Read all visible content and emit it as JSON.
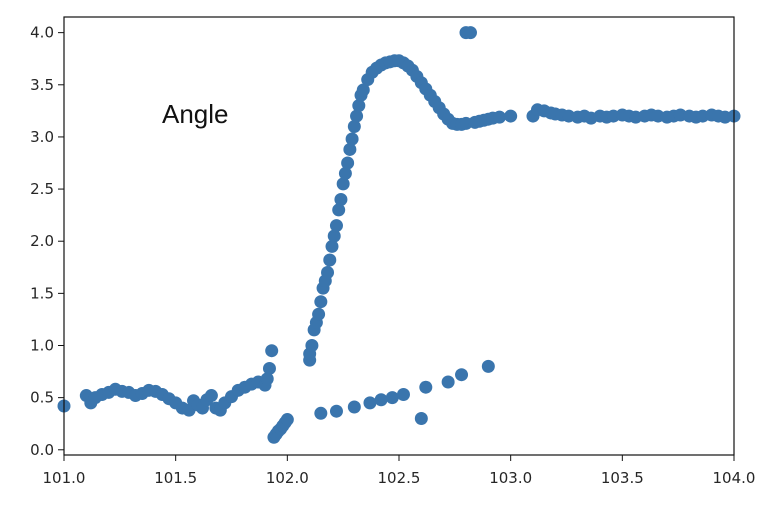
{
  "chart_data": {
    "type": "scatter",
    "title": "",
    "xlabel": "",
    "ylabel": "",
    "annotation": "Angle",
    "xlim": [
      101.0,
      104.0
    ],
    "ylim": [
      -0.05,
      4.15
    ],
    "grid": false,
    "marker_color": "#3a75ad",
    "xticks": [
      101.0,
      101.5,
      102.0,
      102.5,
      103.0,
      103.5,
      104.0
    ],
    "yticks": [
      0.0,
      0.5,
      1.0,
      1.5,
      2.0,
      2.5,
      3.0,
      3.5,
      4.0
    ],
    "xtick_labels": [
      "101.0",
      "101.5",
      "102.0",
      "102.5",
      "103.0",
      "103.5",
      "104.0"
    ],
    "ytick_labels": [
      "0.0",
      "0.5",
      "1.0",
      "1.5",
      "2.0",
      "2.5",
      "3.0",
      "3.5",
      "4.0"
    ],
    "series": [
      {
        "points": [
          [
            101.0,
            0.42
          ],
          [
            101.1,
            0.52
          ],
          [
            101.12,
            0.45
          ],
          [
            101.14,
            0.5
          ],
          [
            101.17,
            0.53
          ],
          [
            101.2,
            0.55
          ],
          [
            101.23,
            0.58
          ],
          [
            101.26,
            0.56
          ],
          [
            101.29,
            0.55
          ],
          [
            101.32,
            0.52
          ],
          [
            101.35,
            0.54
          ],
          [
            101.38,
            0.57
          ],
          [
            101.41,
            0.56
          ],
          [
            101.44,
            0.53
          ],
          [
            101.47,
            0.49
          ],
          [
            101.5,
            0.45
          ],
          [
            101.53,
            0.4
          ],
          [
            101.56,
            0.38
          ],
          [
            101.58,
            0.47
          ],
          [
            101.6,
            0.43
          ],
          [
            101.62,
            0.4
          ],
          [
            101.64,
            0.48
          ],
          [
            101.66,
            0.52
          ],
          [
            101.68,
            0.4
          ],
          [
            101.7,
            0.38
          ],
          [
            101.72,
            0.45
          ],
          [
            101.75,
            0.51
          ],
          [
            101.78,
            0.57
          ],
          [
            101.81,
            0.6
          ],
          [
            101.84,
            0.63
          ],
          [
            101.87,
            0.65
          ],
          [
            101.9,
            0.62
          ],
          [
            101.91,
            0.68
          ],
          [
            101.92,
            0.78
          ],
          [
            101.93,
            0.95
          ],
          [
            101.94,
            0.12
          ],
          [
            101.95,
            0.15
          ],
          [
            101.96,
            0.18
          ],
          [
            101.97,
            0.2
          ],
          [
            101.98,
            0.23
          ],
          [
            101.99,
            0.26
          ],
          [
            102.0,
            0.29
          ],
          [
            102.1,
            0.86
          ],
          [
            102.1,
            0.92
          ],
          [
            102.11,
            1.0
          ],
          [
            102.12,
            1.15
          ],
          [
            102.13,
            1.22
          ],
          [
            102.14,
            1.3
          ],
          [
            102.15,
            1.42
          ],
          [
            102.16,
            1.55
          ],
          [
            102.17,
            1.62
          ],
          [
            102.18,
            1.7
          ],
          [
            102.19,
            1.82
          ],
          [
            102.2,
            1.95
          ],
          [
            102.21,
            2.05
          ],
          [
            102.22,
            2.15
          ],
          [
            102.23,
            2.3
          ],
          [
            102.24,
            2.4
          ],
          [
            102.25,
            2.55
          ],
          [
            102.26,
            2.65
          ],
          [
            102.27,
            2.75
          ],
          [
            102.28,
            2.88
          ],
          [
            102.29,
            2.98
          ],
          [
            102.3,
            3.1
          ],
          [
            102.31,
            3.2
          ],
          [
            102.32,
            3.3
          ],
          [
            102.33,
            3.4
          ],
          [
            102.34,
            3.45
          ],
          [
            102.36,
            3.55
          ],
          [
            102.38,
            3.62
          ],
          [
            102.4,
            3.66
          ],
          [
            102.42,
            3.69
          ],
          [
            102.44,
            3.71
          ],
          [
            102.46,
            3.72
          ],
          [
            102.48,
            3.73
          ],
          [
            102.5,
            3.73
          ],
          [
            102.52,
            3.71
          ],
          [
            102.54,
            3.68
          ],
          [
            102.56,
            3.64
          ],
          [
            102.58,
            3.58
          ],
          [
            102.6,
            3.52
          ],
          [
            102.62,
            3.46
          ],
          [
            102.64,
            3.4
          ],
          [
            102.66,
            3.34
          ],
          [
            102.68,
            3.28
          ],
          [
            102.7,
            3.22
          ],
          [
            102.72,
            3.17
          ],
          [
            102.74,
            3.13
          ],
          [
            102.76,
            3.12
          ],
          [
            102.78,
            3.12
          ],
          [
            102.8,
            3.13
          ],
          [
            102.8,
            4.0
          ],
          [
            102.82,
            4.0
          ],
          [
            102.84,
            3.14
          ],
          [
            102.86,
            3.15
          ],
          [
            102.88,
            3.16
          ],
          [
            102.9,
            3.17
          ],
          [
            102.92,
            3.18
          ],
          [
            102.95,
            3.19
          ],
          [
            103.0,
            3.2
          ],
          [
            103.1,
            3.2
          ],
          [
            103.12,
            3.26
          ],
          [
            103.15,
            3.25
          ],
          [
            103.18,
            3.23
          ],
          [
            103.2,
            3.22
          ],
          [
            103.23,
            3.21
          ],
          [
            103.26,
            3.2
          ],
          [
            103.3,
            3.19
          ],
          [
            103.33,
            3.2
          ],
          [
            103.36,
            3.18
          ],
          [
            103.4,
            3.2
          ],
          [
            103.43,
            3.19
          ],
          [
            103.46,
            3.2
          ],
          [
            103.5,
            3.21
          ],
          [
            103.53,
            3.2
          ],
          [
            103.56,
            3.19
          ],
          [
            103.6,
            3.2
          ],
          [
            103.63,
            3.21
          ],
          [
            103.66,
            3.2
          ],
          [
            103.7,
            3.19
          ],
          [
            103.73,
            3.2
          ],
          [
            103.76,
            3.21
          ],
          [
            103.8,
            3.2
          ],
          [
            103.83,
            3.19
          ],
          [
            103.86,
            3.2
          ],
          [
            103.9,
            3.21
          ],
          [
            103.93,
            3.2
          ],
          [
            103.96,
            3.19
          ],
          [
            104.0,
            3.2
          ],
          [
            102.15,
            0.35
          ],
          [
            102.22,
            0.37
          ],
          [
            102.3,
            0.41
          ],
          [
            102.37,
            0.45
          ],
          [
            102.42,
            0.48
          ],
          [
            102.47,
            0.5
          ],
          [
            102.52,
            0.53
          ],
          [
            102.6,
            0.3
          ],
          [
            102.62,
            0.6
          ],
          [
            102.72,
            0.65
          ],
          [
            102.78,
            0.72
          ],
          [
            102.9,
            0.8
          ]
        ]
      }
    ]
  }
}
